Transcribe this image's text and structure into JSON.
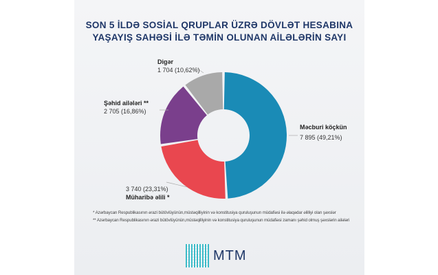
{
  "title_line1": "SON 5 İLDƏ SOSİAL QRUPLAR ÜZRƏ DÖVLƏT HESABINA",
  "title_line2": "YAŞAYIŞ SAHƏSİ İLƏ TƏMİN OLUNAN AİLƏLƏRİN SAYI",
  "chart_data": {
    "type": "pie",
    "variant": "donut",
    "title": "SON 5 İLDƏ SOSİAL QRUPLAR ÜZRƏ DÖVLƏT HESABINA YAŞAYIŞ SAHƏSİ İLƏ TƏMİN OLUNAN AİLƏLƏRİN SAYI",
    "slices": [
      {
        "name": "Məcburi köçkün",
        "value": 7895,
        "percent": 49.21,
        "label": "7 895 (49,21%)",
        "color": "#1a8bb6"
      },
      {
        "name": "Müharibə əlili *",
        "value": 3740,
        "percent": 23.31,
        "label": "3 740 (23,31%)",
        "color": "#e9474f"
      },
      {
        "name": "Şəhid ailələri **",
        "value": 2705,
        "percent": 16.86,
        "label": "2 705 (16,86%)",
        "color": "#7a3f8c"
      },
      {
        "name": "Digər",
        "value": 1704,
        "percent": 10.62,
        "label": "1 704 (10,62%)",
        "color": "#a9a9a9"
      }
    ]
  },
  "footnotes": [
    "* Azərbaycan Respublikasının ərazi bütövlüyünün,müstəqilliyinin və konstitusiya quruluşunun müdafiəsi ilə əlaqədar əlilliyi olan şəxslər",
    "** Azərbaycan Respublikasının ərazi bütövlüyünün,müstəqilliyinin və konstitusiya quruluşunun müdafiəsi zamanı şəhid olmuş şəxslərin ailələri"
  ],
  "logo_text": "MTM"
}
